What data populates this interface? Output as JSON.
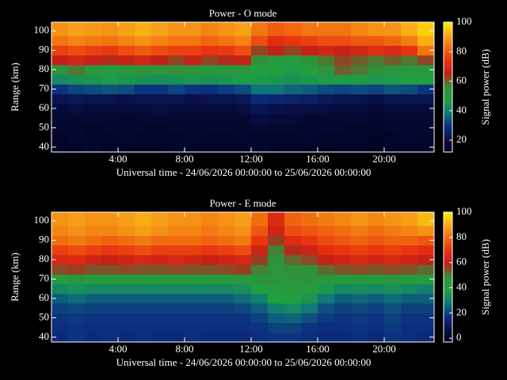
{
  "chart_data": [
    {
      "type": "heatmap",
      "title": "Power - O mode",
      "xlabel": "Universal time - 24/06/2026 00:00:00 to 25/06/2026 00:00:00",
      "ylabel": "Range (km)",
      "colorbar_label": "Signal power (dB)",
      "xlim": [
        0,
        23
      ],
      "ylim": [
        37.5,
        104.5
      ],
      "xticks": [
        {
          "value": 4,
          "label": "4:00"
        },
        {
          "value": 8,
          "label": "8:00"
        },
        {
          "value": 12,
          "label": "12:00"
        },
        {
          "value": 16,
          "label": "16:00"
        },
        {
          "value": 20,
          "label": "20:00"
        }
      ],
      "yticks": [
        40,
        50,
        60,
        70,
        80,
        90,
        100
      ],
      "clim": [
        12,
        100
      ],
      "cticks": [
        20,
        40,
        60,
        80,
        100
      ],
      "colorscale": [
        "#000018",
        "#08104a",
        "#0c3080",
        "#107878",
        "#20a040",
        "#30903a",
        "#c02018",
        "#e83010",
        "#f06a10",
        "#f8a818",
        "#ffee00"
      ],
      "xbins": [
        0,
        1,
        2,
        3,
        4,
        5,
        6,
        7,
        8,
        9,
        10,
        11,
        12,
        13,
        14,
        15,
        16,
        17,
        18,
        19,
        20,
        21,
        22,
        23
      ],
      "ybins": [
        37.5,
        42.5,
        47.5,
        52.5,
        57.5,
        62.5,
        67.5,
        72.5,
        77.5,
        82.5,
        87.5,
        92.5,
        97.5,
        104.5
      ],
      "z": [
        [
          15,
          15,
          16,
          15,
          15,
          14,
          15,
          16,
          15,
          15,
          15,
          15,
          16,
          15,
          15,
          15,
          14,
          15,
          15,
          14,
          15,
          15,
          15
        ],
        [
          15,
          16,
          15,
          15,
          16,
          15,
          15,
          15,
          16,
          15,
          15,
          16,
          15,
          15,
          15,
          16,
          15,
          15,
          15,
          14,
          15,
          16,
          15
        ],
        [
          16,
          16,
          15,
          16,
          16,
          16,
          15,
          16,
          16,
          16,
          16,
          16,
          17,
          16,
          16,
          16,
          16,
          16,
          15,
          15,
          16,
          16,
          16
        ],
        [
          17,
          17,
          17,
          17,
          16,
          17,
          17,
          17,
          17,
          17,
          17,
          17,
          19,
          18,
          18,
          17,
          17,
          17,
          17,
          16,
          17,
          17,
          17
        ],
        [
          18,
          19,
          18,
          18,
          18,
          18,
          19,
          18,
          18,
          18,
          18,
          19,
          22,
          21,
          20,
          20,
          19,
          18,
          18,
          17,
          18,
          18,
          18
        ],
        [
          22,
          23,
          22,
          22,
          21,
          22,
          22,
          22,
          21,
          22,
          22,
          23,
          28,
          27,
          26,
          25,
          23,
          22,
          22,
          20,
          22,
          22,
          22
        ],
        [
          30,
          32,
          33,
          34,
          33,
          30,
          30,
          32,
          30,
          29,
          31,
          33,
          38,
          38,
          36,
          35,
          33,
          32,
          33,
          32,
          34,
          33,
          30
        ],
        [
          42,
          44,
          45,
          46,
          45,
          44,
          43,
          44,
          45,
          44,
          45,
          46,
          46,
          45,
          44,
          45,
          46,
          46,
          46,
          45,
          46,
          47,
          48
        ],
        [
          55,
          58,
          52,
          50,
          52,
          55,
          54,
          56,
          55,
          52,
          52,
          53,
          48,
          47,
          46,
          48,
          55,
          60,
          58,
          56,
          54,
          52,
          50
        ],
        [
          65,
          68,
          66,
          64,
          66,
          68,
          65,
          62,
          66,
          62,
          64,
          66,
          56,
          52,
          50,
          55,
          58,
          62,
          60,
          58,
          60,
          58,
          62
        ],
        [
          76,
          78,
          76,
          75,
          78,
          80,
          78,
          76,
          76,
          74,
          75,
          78,
          62,
          65,
          62,
          66,
          68,
          66,
          68,
          72,
          70,
          74,
          84
        ],
        [
          84,
          86,
          85,
          84,
          86,
          88,
          86,
          84,
          84,
          82,
          84,
          86,
          78,
          72,
          74,
          76,
          78,
          78,
          80,
          80,
          82,
          85,
          92
        ],
        [
          88,
          90,
          89,
          88,
          90,
          92,
          90,
          88,
          88,
          86,
          88,
          90,
          84,
          80,
          82,
          84,
          84,
          84,
          86,
          88,
          88,
          92,
          96
        ]
      ]
    },
    {
      "type": "heatmap",
      "title": "Power - E mode",
      "xlabel": "Universal time - 24/06/2026 00:00:00 to 25/06/2026 00:00:00",
      "ylabel": "Range (km)",
      "colorbar_label": "Signal power (dB)",
      "xlim": [
        0,
        23
      ],
      "ylim": [
        37.5,
        104.5
      ],
      "xticks": [
        {
          "value": 4,
          "label": "4:00"
        },
        {
          "value": 8,
          "label": "8:00"
        },
        {
          "value": 12,
          "label": "12:00"
        },
        {
          "value": 16,
          "label": "16:00"
        },
        {
          "value": 20,
          "label": "20:00"
        }
      ],
      "yticks": [
        40,
        50,
        60,
        70,
        80,
        90,
        100
      ],
      "clim": [
        -3,
        100
      ],
      "cticks": [
        0,
        20,
        40,
        60,
        80,
        100
      ],
      "colorscale": [
        "#000018",
        "#08104a",
        "#0c3080",
        "#107878",
        "#20a040",
        "#30903a",
        "#c02018",
        "#e83010",
        "#f06a10",
        "#f8a818",
        "#ffee00"
      ],
      "xbins": [
        0,
        1,
        2,
        3,
        4,
        5,
        6,
        7,
        8,
        9,
        10,
        11,
        12,
        13,
        14,
        15,
        16,
        17,
        18,
        19,
        20,
        21,
        22,
        23
      ],
      "ybins": [
        37.5,
        42.5,
        47.5,
        52.5,
        57.5,
        62.5,
        67.5,
        72.5,
        77.5,
        82.5,
        87.5,
        92.5,
        97.5,
        104.5
      ],
      "z": [
        [
          16,
          18,
          16,
          17,
          16,
          17,
          16,
          16,
          17,
          16,
          16,
          16,
          17,
          18,
          18,
          17,
          16,
          16,
          17,
          16,
          18,
          17,
          16
        ],
        [
          17,
          18,
          17,
          17,
          17,
          17,
          17,
          17,
          17,
          17,
          17,
          17,
          18,
          20,
          20,
          18,
          17,
          17,
          18,
          17,
          19,
          17,
          17
        ],
        [
          18,
          19,
          18,
          18,
          18,
          18,
          18,
          18,
          18,
          18,
          18,
          18,
          20,
          24,
          25,
          22,
          19,
          18,
          19,
          18,
          20,
          18,
          18
        ],
        [
          20,
          21,
          20,
          20,
          20,
          20,
          20,
          20,
          20,
          20,
          20,
          21,
          24,
          30,
          32,
          28,
          22,
          20,
          21,
          20,
          22,
          20,
          20
        ],
        [
          24,
          26,
          24,
          24,
          24,
          24,
          24,
          24,
          24,
          24,
          24,
          26,
          30,
          38,
          40,
          35,
          28,
          24,
          25,
          24,
          26,
          24,
          24
        ],
        [
          32,
          34,
          32,
          32,
          32,
          32,
          32,
          32,
          32,
          32,
          32,
          34,
          38,
          42,
          44,
          42,
          36,
          32,
          33,
          32,
          34,
          32,
          30
        ],
        [
          42,
          44,
          42,
          42,
          42,
          42,
          42,
          42,
          42,
          42,
          42,
          44,
          45,
          45,
          46,
          45,
          44,
          42,
          43,
          42,
          44,
          42,
          40
        ],
        [
          55,
          56,
          54,
          54,
          55,
          54,
          54,
          55,
          54,
          54,
          55,
          56,
          50,
          46,
          48,
          48,
          52,
          54,
          55,
          54,
          55,
          54,
          52
        ],
        [
          64,
          66,
          62,
          60,
          62,
          64,
          62,
          64,
          62,
          60,
          62,
          64,
          56,
          48,
          52,
          55,
          60,
          62,
          64,
          62,
          64,
          62,
          60
        ],
        [
          72,
          74,
          72,
          70,
          72,
          74,
          72,
          72,
          72,
          70,
          72,
          74,
          62,
          50,
          58,
          62,
          68,
          70,
          72,
          70,
          72,
          70,
          68
        ],
        [
          80,
          82,
          80,
          78,
          80,
          82,
          80,
          80,
          80,
          78,
          80,
          82,
          70,
          56,
          66,
          70,
          74,
          76,
          78,
          76,
          78,
          78,
          76
        ],
        [
          84,
          86,
          84,
          84,
          86,
          88,
          86,
          84,
          84,
          82,
          84,
          86,
          76,
          62,
          74,
          76,
          78,
          80,
          82,
          80,
          82,
          84,
          86
        ],
        [
          86,
          88,
          86,
          86,
          88,
          90,
          88,
          86,
          86,
          84,
          86,
          88,
          80,
          66,
          78,
          80,
          82,
          84,
          86,
          84,
          86,
          88,
          92
        ]
      ]
    }
  ]
}
